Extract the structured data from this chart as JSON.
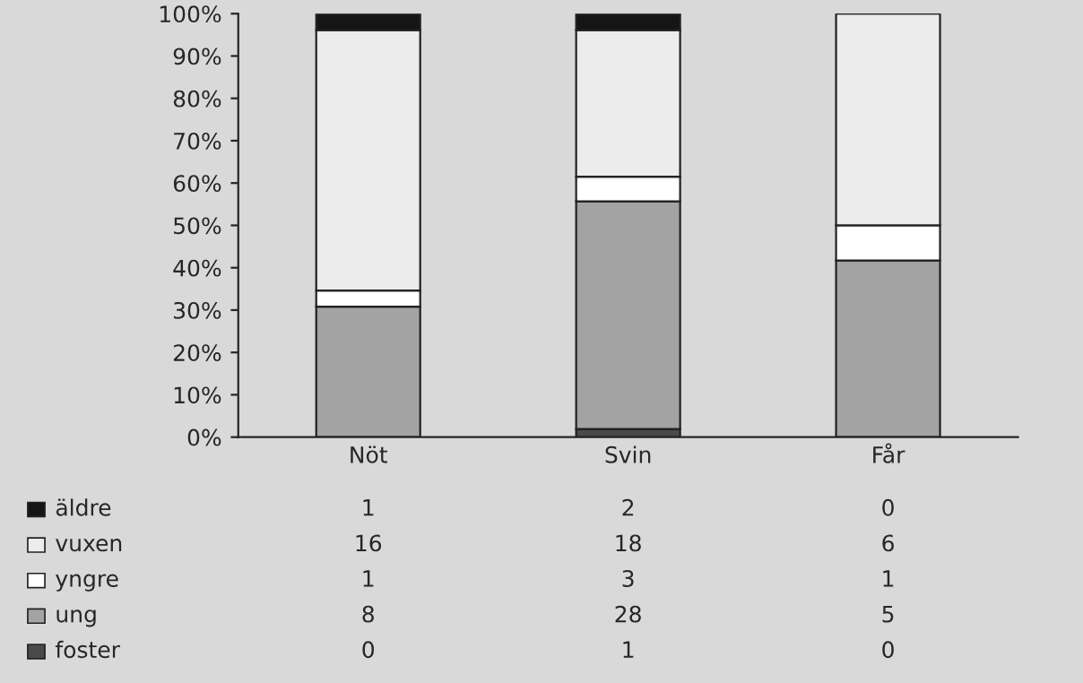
{
  "chart_data": [
    {
      "type": "bar",
      "stacked": true,
      "categories": [
        "Nöt",
        "Svin",
        "Får"
      ],
      "series": [
        {
          "color": "#4a4a4a",
          "values": [
            0,
            1.9,
            0
          ]
        },
        {
          "color": "#a3a3a3",
          "values": [
            30.8,
            53.8,
            41.7
          ]
        },
        {
          "color": "#ffffff",
          "values": [
            3.8,
            5.8,
            8.3
          ]
        },
        {
          "color": "#ececec",
          "values": [
            61.5,
            34.6,
            50.0
          ]
        },
        {
          "color": "#151515",
          "values": [
            3.8,
            3.8,
            0
          ]
        }
      ],
      "ylim": [
        0,
        100
      ],
      "yticks": [
        {
          "value": 0,
          "label": "0%"
        },
        {
          "value": 10,
          "label": "10%"
        },
        {
          "value": 20,
          "label": "20%"
        },
        {
          "value": 30,
          "label": "30%"
        },
        {
          "value": 40,
          "label": "40%"
        },
        {
          "value": 50,
          "label": "50%"
        },
        {
          "value": 60,
          "label": "60%"
        },
        {
          "value": 70,
          "label": "70%"
        },
        {
          "value": 80,
          "label": "80%"
        },
        {
          "value": 90,
          "label": "90%"
        },
        {
          "value": 100,
          "label": "100%"
        }
      ],
      "grid": false
    },
    {
      "type": "other",
      "legend": "left",
      "series": [
        {
          "name": "äldre",
          "color": "#151515"
        },
        {
          "name": "vuxen",
          "color": "#ececec"
        },
        {
          "name": "yngre",
          "color": "#ffffff"
        },
        {
          "name": "ung",
          "color": "#a3a3a3"
        },
        {
          "name": "foster",
          "color": "#4a4a4a"
        }
      ],
      "annotations": [
        "1",
        "2",
        "0",
        "16",
        "18",
        "6",
        "1",
        "3",
        "1",
        "8",
        "28",
        "5",
        "0",
        "1",
        "0"
      ]
    }
  ]
}
